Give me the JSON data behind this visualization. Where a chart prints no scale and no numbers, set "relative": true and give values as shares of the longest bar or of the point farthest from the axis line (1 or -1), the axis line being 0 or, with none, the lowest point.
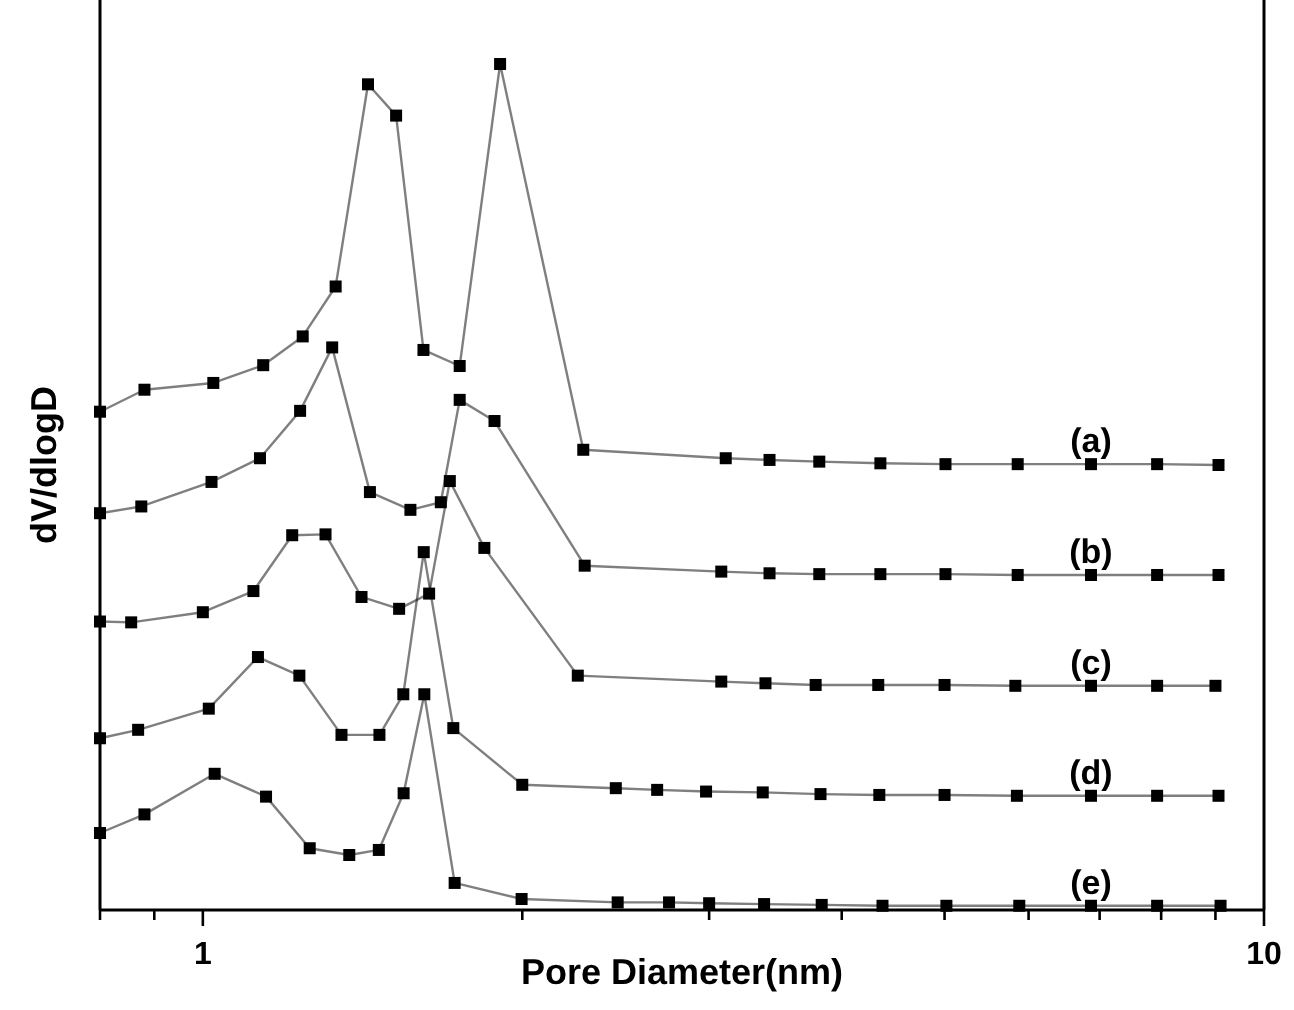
{
  "chart_data": {
    "type": "line",
    "xlabel": "Pore Diameter(nm)",
    "ylabel": "dV/dlogD",
    "relative": true,
    "log": "x",
    "marker": "square",
    "line_style": "solid",
    "xlim": [
      0.8,
      10
    ],
    "xticks": [
      {
        "value": 0.8,
        "label": null
      },
      {
        "value": 0.9,
        "label": null
      },
      1,
      {
        "value": 2,
        "label": null
      },
      {
        "value": 3,
        "label": null
      },
      {
        "value": 4,
        "label": null
      },
      {
        "value": 5,
        "label": null
      },
      {
        "value": 6,
        "label": null
      },
      {
        "value": 7,
        "label": null
      },
      {
        "value": 8,
        "label": null
      },
      {
        "value": 9,
        "label": null
      },
      10
    ],
    "series": [
      {
        "name": "(a)",
        "color": "#000000",
        "x": [
          0.8,
          0.881,
          1.023,
          1.14,
          1.242,
          1.334,
          1.431,
          1.521,
          1.614,
          1.746,
          1.906,
          2.283,
          3.11,
          3.42,
          3.81,
          4.35,
          5.01,
          5.86,
          6.87,
          7.93,
          9.06
        ],
        "values": [
          0.589,
          0.615,
          0.623,
          0.644,
          0.678,
          0.737,
          0.976,
          0.939,
          0.662,
          0.643,
          1.0,
          0.544,
          0.534,
          0.532,
          0.53,
          0.528,
          0.527,
          0.527,
          0.527,
          0.527,
          0.526
        ]
      },
      {
        "name": "(b)",
        "color": "#000000",
        "x": [
          0.8,
          0.875,
          1.019,
          1.132,
          1.235,
          1.324,
          1.437,
          1.569,
          1.676,
          1.746,
          1.883,
          2.29,
          3.08,
          3.42,
          3.81,
          4.35,
          5.01,
          5.86,
          6.87,
          7.93,
          9.06
        ],
        "values": [
          0.469,
          0.477,
          0.506,
          0.534,
          0.59,
          0.665,
          0.494,
          0.473,
          0.482,
          0.603,
          0.578,
          0.407,
          0.4,
          0.398,
          0.397,
          0.397,
          0.397,
          0.396,
          0.396,
          0.396,
          0.396
        ]
      },
      {
        "name": "(c)",
        "color": "#000000",
        "x": [
          0.8,
          0.856,
          1.0,
          1.116,
          1.214,
          1.305,
          1.411,
          1.531,
          1.634,
          1.709,
          1.842,
          2.256,
          3.08,
          3.39,
          3.78,
          4.33,
          5.0,
          5.83,
          6.87,
          7.93,
          9.0
        ],
        "values": [
          0.341,
          0.34,
          0.352,
          0.377,
          0.443,
          0.444,
          0.37,
          0.356,
          0.374,
          0.507,
          0.428,
          0.277,
          0.27,
          0.268,
          0.266,
          0.266,
          0.266,
          0.265,
          0.265,
          0.265,
          0.265
        ]
      },
      {
        "name": "(d)",
        "color": "#000000",
        "x": [
          0.8,
          0.869,
          1.013,
          1.127,
          1.233,
          1.351,
          1.467,
          1.545,
          1.615,
          1.722,
          2.0,
          2.45,
          2.68,
          2.98,
          3.37,
          3.82,
          4.34,
          5.0,
          5.85,
          6.87,
          7.93,
          9.06
        ],
        "values": [
          0.203,
          0.213,
          0.238,
          0.299,
          0.277,
          0.207,
          0.207,
          0.255,
          0.423,
          0.215,
          0.148,
          0.144,
          0.142,
          0.14,
          0.139,
          0.137,
          0.136,
          0.136,
          0.135,
          0.135,
          0.135,
          0.135
        ]
      },
      {
        "name": "(e)",
        "color": "#000000",
        "x": [
          0.8,
          0.881,
          1.026,
          1.147,
          1.261,
          1.374,
          1.465,
          1.546,
          1.617,
          1.727,
          1.997,
          2.46,
          2.75,
          3.0,
          3.38,
          3.83,
          4.37,
          5.02,
          5.88,
          6.87,
          7.93,
          9.1
        ],
        "values": [
          0.091,
          0.113,
          0.161,
          0.134,
          0.073,
          0.065,
          0.071,
          0.138,
          0.255,
          0.032,
          0.013,
          0.009,
          0.009,
          0.008,
          0.007,
          0.006,
          0.005,
          0.005,
          0.005,
          0.005,
          0.005,
          0.005
        ]
      }
    ]
  }
}
